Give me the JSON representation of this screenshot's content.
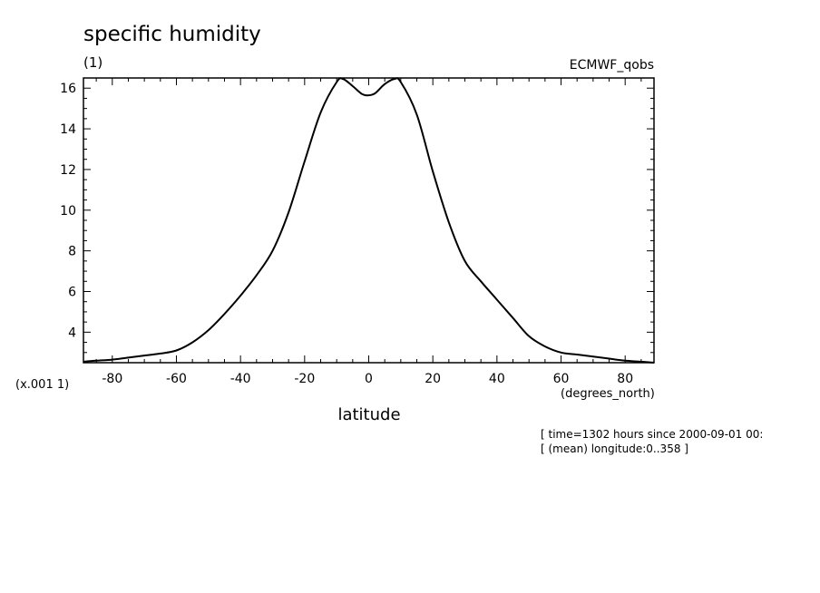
{
  "chart_data": {
    "type": "line",
    "title": "specific humidity",
    "units": "(1)",
    "dataset": "ECMWF_qobs",
    "xlabel": "latitude",
    "x_units": "(degrees_north)",
    "y_scale": "(x.001 1)",
    "xlim": [
      -89,
      89
    ],
    "ylim": [
      2.5,
      16.5
    ],
    "x_ticks": [
      -80,
      -60,
      -40,
      -20,
      0,
      20,
      40,
      60,
      80
    ],
    "x_tick_labels": [
      "-80",
      "-60",
      "-40",
      "-20",
      "0",
      "20",
      "40",
      "60",
      "80"
    ],
    "y_ticks": [
      4,
      6,
      8,
      10,
      12,
      14,
      16
    ],
    "y_tick_labels": [
      "4",
      "6",
      "8",
      "10",
      "12",
      "14",
      "16"
    ],
    "grid": false,
    "series": [
      {
        "x": [
          -89,
          -85,
          -80,
          -75,
          -70,
          -65,
          -60,
          -55,
          -50,
          -45,
          -40,
          -35,
          -30,
          -25,
          -20,
          -15,
          -10,
          -8,
          -5,
          -2,
          0,
          2,
          5,
          8,
          10,
          15,
          20,
          25,
          30,
          35,
          40,
          45,
          50,
          55,
          60,
          65,
          70,
          75,
          80,
          85,
          89
        ],
        "values": [
          2.55,
          2.6,
          2.65,
          2.75,
          2.85,
          2.95,
          3.1,
          3.5,
          4.1,
          4.9,
          5.8,
          6.8,
          8.0,
          9.9,
          12.4,
          14.8,
          16.3,
          16.45,
          16.1,
          15.7,
          15.65,
          15.75,
          16.2,
          16.45,
          16.3,
          14.7,
          11.9,
          9.4,
          7.5,
          6.5,
          5.6,
          4.7,
          3.8,
          3.3,
          3.0,
          2.9,
          2.8,
          2.7,
          2.6,
          2.55,
          2.5
        ]
      }
    ]
  },
  "info": {
    "line1": "[ time=1302 hours since 2000-09-01 00:",
    "line2": "[ (mean) longitude:0..358 ]"
  }
}
